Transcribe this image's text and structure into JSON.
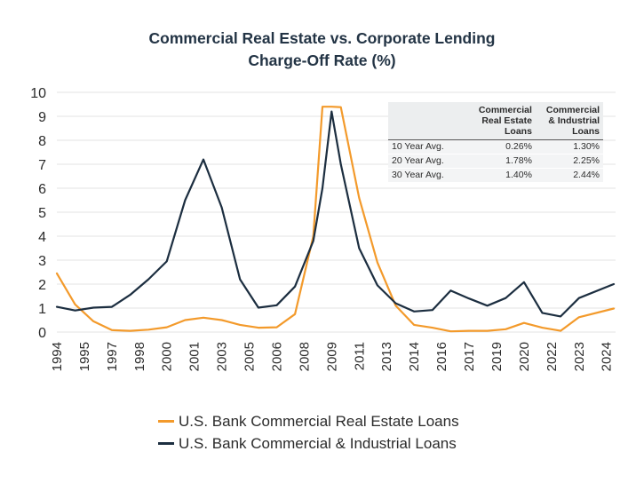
{
  "title_line1": "Commercial Real Estate vs. Corporate Lending",
  "title_line2": "Charge-Off Rate (%)",
  "colors": {
    "cre": "#f39a2b",
    "ci": "#1c2e40",
    "grid": "#e3e3e3"
  },
  "chart_data": {
    "type": "line",
    "title": "Commercial Real Estate vs. Corporate Lending Charge-Off Rate (%)",
    "xlabel": "",
    "ylabel": "",
    "ylim": [
      0,
      10
    ],
    "yticks": [
      0,
      1,
      2,
      3,
      4,
      5,
      6,
      7,
      8,
      9,
      10
    ],
    "xlim": [
      1994,
      2024.5
    ],
    "xtick_values": [
      1994,
      1995.5,
      1997,
      1998.5,
      2000,
      2001.5,
      2003,
      2004.5,
      2006,
      2007.5,
      2009,
      2010.5,
      2012,
      2013.5,
      2015,
      2016.5,
      2018,
      2019.5,
      2021,
      2022.5,
      2024
    ],
    "xtick_labels": [
      "1994",
      "1995",
      "1997",
      "1998",
      "2000",
      "2001",
      "2003",
      "2005",
      "2006",
      "2008",
      "2009",
      "2011",
      "2013",
      "2014",
      "2016",
      "2017",
      "2019",
      "2020",
      "2022",
      "2023",
      "2024"
    ],
    "x": [
      1994,
      1995,
      1996,
      1997,
      1998,
      1999,
      2000,
      2001,
      2002,
      2003,
      2004,
      2005,
      2006,
      2007,
      2008,
      2008.5,
      2009,
      2009.5,
      2010.5,
      2011.5,
      2012.5,
      2013.5,
      2014.5,
      2015.5,
      2016.5,
      2017.5,
      2018.5,
      2019.5,
      2020.5,
      2021.5,
      2022.5,
      2024.4
    ],
    "series": [
      {
        "name": "U.S. Bank Commercial Real Estate Loans",
        "values": [
          2.45,
          1.15,
          0.45,
          0.08,
          0.05,
          0.1,
          0.2,
          0.5,
          0.6,
          0.5,
          0.3,
          0.18,
          0.2,
          0.75,
          4.0,
          9.4,
          9.4,
          9.38,
          5.6,
          2.9,
          1.1,
          0.3,
          0.18,
          0.03,
          0.05,
          0.05,
          0.12,
          0.38,
          0.18,
          0.05,
          0.62,
          0.98
        ]
      },
      {
        "name": "U.S. Bank Commercial & Industrial Loans",
        "values": [
          1.05,
          0.9,
          1.02,
          1.05,
          1.55,
          2.2,
          2.95,
          5.5,
          7.2,
          5.2,
          2.2,
          1.02,
          1.12,
          1.9,
          3.8,
          6.0,
          9.2,
          7.0,
          3.5,
          1.95,
          1.2,
          0.86,
          0.92,
          1.73,
          1.4,
          1.1,
          1.42,
          2.08,
          0.8,
          0.65,
          1.42,
          2.0
        ]
      }
    ],
    "legend": [
      "U.S. Bank Commercial Real Estate Loans",
      "U.S. Bank Commercial & Industrial Loans"
    ],
    "legend_position": "bottom",
    "table": {
      "headers": [
        "",
        "Commercial Real Estate Loans",
        "Commercial & Industrial Loans"
      ],
      "rows": [
        {
          "label": "10 Year Avg.",
          "cre": "0.26%",
          "ci": "1.30%"
        },
        {
          "label": "20 Year Avg.",
          "cre": "1.78%",
          "ci": "2.25%"
        },
        {
          "label": "30 Year Avg.",
          "cre": "1.40%",
          "ci": "2.44%"
        }
      ]
    }
  }
}
